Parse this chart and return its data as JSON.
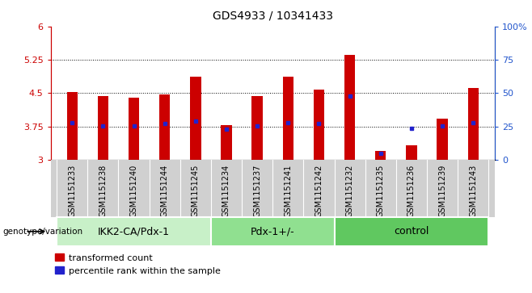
{
  "title": "GDS4933 / 10341433",
  "samples": [
    "GSM1151233",
    "GSM1151238",
    "GSM1151240",
    "GSM1151244",
    "GSM1151245",
    "GSM1151234",
    "GSM1151237",
    "GSM1151241",
    "GSM1151242",
    "GSM1151232",
    "GSM1151235",
    "GSM1151236",
    "GSM1151239",
    "GSM1151243"
  ],
  "bar_values": [
    4.52,
    4.43,
    4.4,
    4.47,
    4.87,
    3.78,
    4.43,
    4.86,
    4.58,
    5.35,
    3.2,
    3.33,
    3.93,
    4.62
  ],
  "blue_markers": [
    3.83,
    3.76,
    3.76,
    3.82,
    3.87,
    3.68,
    3.76,
    3.83,
    3.82,
    4.44,
    3.14,
    3.7,
    3.76,
    3.83
  ],
  "bar_bottom": 3.0,
  "ymin": 3.0,
  "ymax": 6.0,
  "yticks": [
    3,
    3.75,
    4.5,
    5.25,
    6
  ],
  "ytick_labels": [
    "3",
    "3.75",
    "4.5",
    "5.25",
    "6"
  ],
  "right_yticks": [
    0,
    25,
    50,
    75,
    100
  ],
  "right_ytick_labels": [
    "0",
    "25",
    "50",
    "75",
    "100%"
  ],
  "groups": [
    {
      "label": "IKK2-CA/Pdx-1",
      "start": 0,
      "end": 5,
      "color": "#c8f0c8"
    },
    {
      "label": "Pdx-1+/-",
      "start": 5,
      "end": 9,
      "color": "#90e090"
    },
    {
      "label": "control",
      "start": 9,
      "end": 14,
      "color": "#60c860"
    }
  ],
  "bar_color": "#cc0000",
  "blue_color": "#2222cc",
  "bar_width": 0.35,
  "grid_color": "#000000",
  "grid_linewidth": 0.7,
  "left_axis_color": "#cc0000",
  "right_axis_color": "#2255cc",
  "xlabel_bottom": "genotype/variation",
  "legend_items": [
    "transformed count",
    "percentile rank within the sample"
  ],
  "legend_colors": [
    "#cc0000",
    "#2222cc"
  ],
  "sample_bg_color": "#d0d0d0",
  "title_fontsize": 10,
  "tick_fontsize": 8,
  "sample_fontsize": 7,
  "group_fontsize": 9,
  "legend_fontsize": 8
}
